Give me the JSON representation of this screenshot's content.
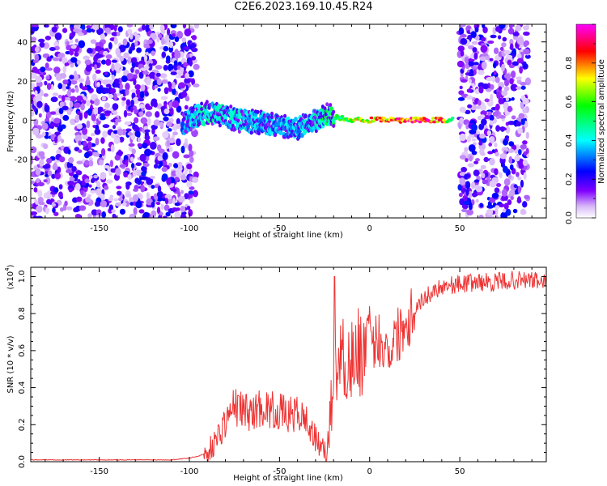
{
  "title": "C2E6.2023.169.10.45.R24",
  "chart_data": [
    {
      "type": "heatmap",
      "title": "C2E6.2023.169.10.45.R24",
      "xlabel": "Height of straight line (km)",
      "ylabel": "Frequency (Hz)",
      "xlim": [
        -188,
        98
      ],
      "ylim": [
        -50,
        49
      ],
      "xticks": [
        "-150",
        "-100",
        "-50",
        "0",
        "50"
      ],
      "yticks": [
        "40",
        "20",
        "0",
        "-20",
        "-40"
      ],
      "colorbar": {
        "label": "Normalized spectral amplitude",
        "range": [
          0,
          1
        ],
        "ticks": [
          "0.0",
          "0.2",
          "0.4",
          "0.6",
          "0.8"
        ],
        "colors": [
          "#ffffff",
          "#d8b8f8",
          "#8000ff",
          "#0000ff",
          "#00ffff",
          "#00ff00",
          "#ffff00",
          "#ff0000",
          "#ff00ff"
        ]
      },
      "noise_regions_km": [
        [
          -188,
          -96
        ],
        [
          50,
          88
        ]
      ],
      "ridge": {
        "x": [
          -104,
          -96,
          -88,
          -80,
          -72,
          -64,
          -56,
          -48,
          -40,
          -32,
          -24,
          -16,
          -8,
          0,
          10,
          20,
          30,
          40,
          46
        ],
        "frequency": [
          -2,
          2,
          4,
          2,
          0,
          -1,
          -2,
          -3,
          -4,
          -1,
          3,
          1,
          0,
          0,
          0,
          0,
          0,
          0,
          0
        ],
        "amplitude": [
          0.35,
          0.45,
          0.5,
          0.45,
          0.45,
          0.4,
          0.4,
          0.4,
          0.4,
          0.45,
          0.55,
          0.6,
          0.75,
          0.85,
          0.9,
          0.95,
          0.95,
          0.9,
          0.5
        ]
      }
    },
    {
      "type": "line",
      "xlabel": "Height of straight line (km)",
      "ylabel": "SNR (10 * v/v)",
      "y_scale_label": "(x10",
      "y_scale_exp": "4",
      "y_scale_close": ")",
      "xlim": [
        -188,
        98
      ],
      "ylim": [
        0,
        1.05
      ],
      "xticks": [
        "-150",
        "-100",
        "-50",
        "0",
        "50"
      ],
      "yticks": [
        "0.0",
        "0.2",
        "0.4",
        "0.6",
        "0.8",
        "1.0"
      ],
      "color": "#ee3333",
      "series": [
        {
          "x": [
            -188,
            -160,
            -130,
            -110,
            -100,
            -95,
            -90,
            -85,
            -80,
            -75,
            -70,
            -65,
            -60,
            -55,
            -50,
            -45,
            -40,
            -35,
            -30,
            -25,
            -22,
            -20,
            -18,
            -15,
            -10,
            -5,
            0,
            5,
            10,
            15,
            20,
            25,
            30,
            35,
            40,
            50,
            60,
            70,
            80,
            90,
            98
          ],
          "y": [
            0.01,
            0.01,
            0.01,
            0.01,
            0.02,
            0.03,
            0.05,
            0.12,
            0.22,
            0.3,
            0.28,
            0.26,
            0.3,
            0.28,
            0.27,
            0.25,
            0.26,
            0.22,
            0.12,
            0.05,
            0.2,
            0.5,
            0.55,
            0.55,
            0.55,
            0.6,
            0.62,
            0.67,
            0.6,
            0.68,
            0.76,
            0.83,
            0.88,
            0.92,
            0.95,
            0.96,
            0.97,
            0.97,
            0.98,
            0.98,
            0.97
          ]
        }
      ]
    }
  ]
}
